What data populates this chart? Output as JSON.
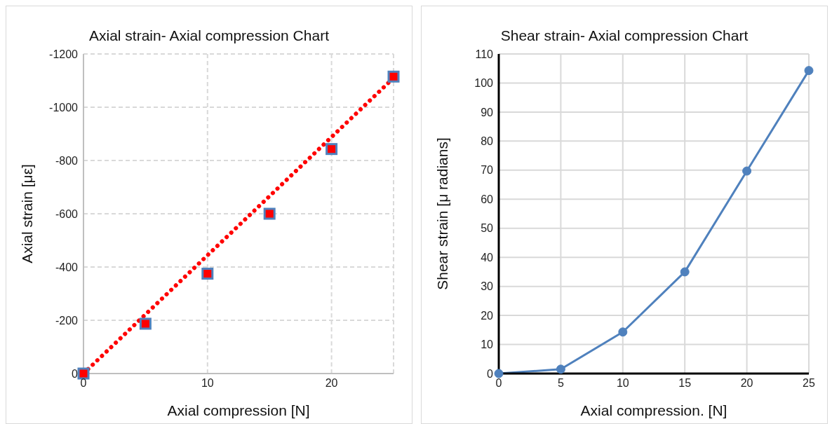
{
  "chart_data": [
    {
      "type": "scatter",
      "title": "Axial strain- Axial compression Chart",
      "xlabel": "Axial compression [N]",
      "ylabel": "Axial strain   [με]",
      "xlim": [
        0,
        25
      ],
      "xticks": [
        0,
        10,
        20
      ],
      "ylim": [
        0,
        -1200
      ],
      "yticks": [
        0,
        -200,
        -400,
        -600,
        -800,
        -1000,
        -1200
      ],
      "grid": true,
      "line_style": "dashed",
      "series": [
        {
          "type": "line",
          "color": "#ff0000",
          "x": [
            0,
            25
          ],
          "values": [
            0,
            -1110
          ],
          "marker": "none",
          "line_style": "dotted"
        },
        {
          "color": "#ff0000",
          "x": [
            0,
            5,
            10,
            15,
            20,
            25
          ],
          "values": [
            0,
            -187,
            -375,
            -600,
            -843,
            -1115
          ],
          "marker": "square"
        }
      ]
    },
    {
      "type": "line",
      "title": "Shear strain- Axial compression Chart",
      "xlabel": "Axial compression. [N]",
      "ylabel": "Shear strain [μ radians]",
      "xlim": [
        0,
        25
      ],
      "xticks": [
        0,
        5,
        10,
        15,
        20,
        25
      ],
      "ylim": [
        0,
        110
      ],
      "yticks": [
        0,
        10,
        20,
        30,
        40,
        50,
        60,
        70,
        80,
        90,
        100,
        110
      ],
      "grid": true,
      "line_style": "solid",
      "series": [
        {
          "color": "#4f81bd",
          "x": [
            0,
            5,
            10,
            15,
            20,
            25
          ],
          "values": [
            0,
            1.5,
            14.3,
            35,
            69.7,
            104.3
          ],
          "marker": "circle",
          "line_style": "solid"
        }
      ]
    }
  ]
}
